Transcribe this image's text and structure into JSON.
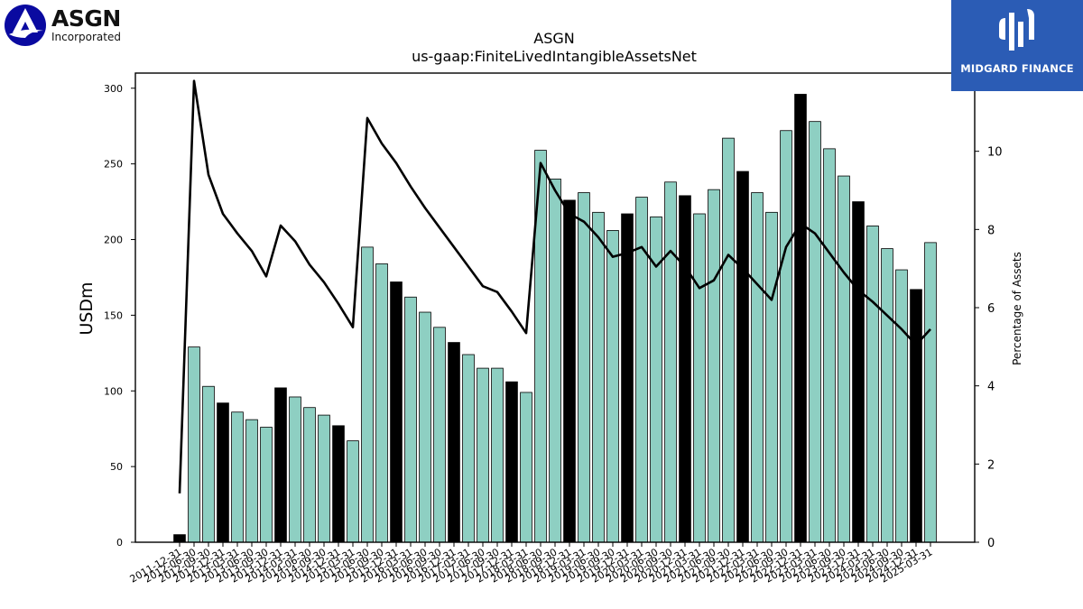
{
  "company_logo": {
    "name": "ASGN",
    "sub": "Incorporated",
    "icon": "asgn-logo-icon"
  },
  "watermark": {
    "text": "MIDGARD FINANCE",
    "icon": "midgard-logo-icon",
    "color": "#2b5cb5"
  },
  "chart_data": {
    "type": "bar",
    "title": "ASGN",
    "subtitle": "us-gaap:FiniteLivedIntangibleAssetsNet",
    "ylabel": "USDm",
    "ylabel_right": "Percentage of Assets",
    "ylim": [
      0,
      310
    ],
    "ylim_right": [
      0,
      12
    ],
    "yticks": [
      0,
      50,
      100,
      150,
      200,
      250,
      300
    ],
    "yticks_right": [
      0,
      2,
      4,
      6,
      8,
      10
    ],
    "grid": false,
    "colors": {
      "bar_quarter": "#8ecfc2",
      "bar_year_end": "#000000",
      "line": "#000000",
      "bar_edge": "#000000"
    },
    "categories": [
      "2011-12-31",
      "2012-06-30",
      "2012-09-30",
      "2012-12-31",
      "2013-03-31",
      "2013-06-30",
      "2013-09-30",
      "2013-12-31",
      "2014-03-31",
      "2014-06-30",
      "2014-09-30",
      "2014-12-31",
      "2015-03-31",
      "2015-06-30",
      "2015-09-30",
      "2015-12-31",
      "2016-03-31",
      "2016-06-30",
      "2016-09-30",
      "2016-12-31",
      "2017-03-31",
      "2017-06-30",
      "2017-09-30",
      "2017-12-31",
      "2018-03-31",
      "2018-06-30",
      "2018-09-30",
      "2018-12-31",
      "2019-03-31",
      "2019-06-30",
      "2019-09-30",
      "2019-12-31",
      "2020-03-31",
      "2020-06-30",
      "2020-09-30",
      "2020-12-31",
      "2021-03-31",
      "2021-06-30",
      "2021-09-30",
      "2021-12-31",
      "2022-03-31",
      "2022-06-30",
      "2022-09-30",
      "2022-12-31",
      "2023-03-31",
      "2023-06-30",
      "2023-09-30",
      "2023-12-31",
      "2024-03-31",
      "2024-06-30",
      "2024-09-30",
      "2024-12-31",
      "2025-03-31"
    ],
    "tick_labels": [
      "2011-12-31",
      "2012-06-30",
      "2012-09-30",
      "2012-12-31",
      "2013-03-31",
      "2013-06-30",
      "2013-09-30",
      "2013-12-31",
      "2014-03-31",
      "2014-06-30",
      "2014-09-30",
      "2014-12-31",
      "2015-03-31",
      "2015-06-30",
      "2015-09-30",
      "2015-12-31",
      "2016-03-31",
      "2016-06-30",
      "2016-09-30",
      "2016-12-31",
      "2017-03-31",
      "2017-06-30",
      "2017-09-30",
      "2017-12-31",
      "2018-03-31",
      "2018-06-30",
      "2018-09-30",
      "2018-12-31",
      "2019-03-31",
      "2019-06-30",
      "2019-09-30",
      "2019-12-31",
      "2020-03-31",
      "2020-06-30",
      "2020-09-30",
      "2020-12-31",
      "2021-03-31",
      "2021-06-30",
      "2021-09-30",
      "2021-12-31",
      "2022-03-31",
      "2022-06-30",
      "2022-09-30",
      "2022-12-31",
      "2023-03-31",
      "2023-06-30",
      "2023-09-30",
      "2023-12-31",
      "2024-03-31",
      "2024-06-30",
      "2024-09-30",
      "2024-12-31",
      "2025-03-31"
    ],
    "year_end": [
      true,
      false,
      false,
      true,
      false,
      false,
      false,
      true,
      false,
      false,
      false,
      true,
      false,
      false,
      false,
      true,
      false,
      false,
      false,
      true,
      false,
      false,
      false,
      true,
      false,
      false,
      false,
      true,
      false,
      false,
      false,
      true,
      false,
      false,
      false,
      true,
      false,
      false,
      false,
      true,
      false,
      false,
      false,
      true,
      false,
      false,
      false,
      true,
      false,
      false,
      false,
      true,
      false
    ],
    "series": [
      {
        "axis": "left",
        "values": [
          5,
          129,
          103,
          92,
          86,
          81,
          76,
          102,
          96,
          89,
          84,
          77,
          67,
          195,
          184,
          172,
          162,
          152,
          142,
          132,
          124,
          115,
          115,
          106,
          99,
          259,
          240,
          226,
          231,
          218,
          206,
          217,
          228,
          215,
          238,
          229,
          217,
          233,
          267,
          245,
          231,
          218,
          272,
          296,
          278,
          260,
          242,
          225,
          209,
          194,
          180,
          167,
          198
        ]
      },
      {
        "axis": "right",
        "values": [
          1.25,
          11.8,
          9.4,
          8.4,
          7.9,
          7.45,
          6.8,
          8.1,
          7.7,
          7.1,
          6.65,
          6.1,
          5.5,
          10.85,
          10.2,
          9.7,
          9.1,
          8.55,
          8.05,
          7.55,
          7.05,
          6.55,
          6.4,
          5.9,
          5.35,
          9.7,
          9.0,
          8.4,
          8.2,
          7.8,
          7.3,
          7.4,
          7.55,
          7.05,
          7.45,
          7.05,
          6.5,
          6.7,
          7.35,
          7.0,
          6.6,
          6.2,
          7.55,
          8.15,
          7.9,
          7.4,
          6.9,
          6.45,
          6.15,
          5.8,
          5.45,
          5.05,
          5.45
        ]
      }
    ]
  }
}
